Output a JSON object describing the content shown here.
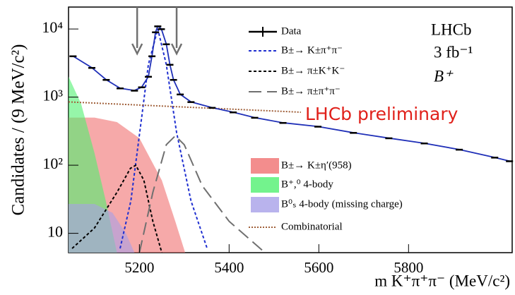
{
  "chart_data": {
    "type": "line",
    "log_y": true,
    "xlim": [
      5042,
      6031
    ],
    "ylim": [
      5.2,
      21000
    ],
    "xticks": [
      5200,
      5400,
      5600,
      5800
    ],
    "yticks": [
      {
        "value": 10,
        "label": "10"
      },
      {
        "value": 100,
        "label": "10²"
      },
      {
        "value": 1000,
        "label": "10³"
      },
      {
        "value": 10000,
        "label": "10⁴"
      }
    ],
    "y_label": "Candidates / (9 MeV/c²)",
    "x_label": "m K⁺π⁺π⁻ (MeV/c²)",
    "annotations": [
      "LHCb",
      "3 fb⁻¹",
      "B⁺"
    ],
    "watermark": "LHCb preliminary",
    "arrows_x": [
      5195,
      5283
    ],
    "data_series": {
      "name": "Data",
      "color": "#000000",
      "x": [
        5052,
        5094,
        5126,
        5157,
        5189,
        5205,
        5220,
        5228,
        5236,
        5241,
        5249,
        5260,
        5268,
        5276,
        5291,
        5315,
        5362,
        5409,
        5457,
        5520,
        5598,
        5677,
        5756,
        5835,
        5913,
        5992,
        6025
      ],
      "values": [
        4000,
        2700,
        1800,
        1350,
        1250,
        1400,
        2000,
        4000,
        9000,
        11000,
        10000,
        6000,
        3000,
        1800,
        1100,
        850,
        700,
        600,
        500,
        420,
        370,
        300,
        250,
        210,
        170,
        130,
        115
      ]
    },
    "fit": {
      "color": "#2030b8",
      "x": [
        5052,
        5094,
        5126,
        5157,
        5189,
        5205,
        5220,
        5228,
        5236,
        5241,
        5249,
        5260,
        5268,
        5276,
        5291,
        5315,
        5362,
        5409,
        5457,
        5520,
        5598,
        5677,
        5756,
        5835,
        5913,
        5992,
        6025
      ],
      "values": [
        4000,
        2700,
        1800,
        1350,
        1250,
        1400,
        2000,
        4000,
        9000,
        11000,
        10000,
        6000,
        3000,
        1800,
        1100,
        850,
        700,
        600,
        500,
        420,
        370,
        300,
        250,
        210,
        170,
        130,
        115
      ]
    },
    "series": [
      {
        "name": "B±→ K±π⁺π⁻",
        "color": "#2030d0",
        "style": "dashed",
        "x": [
          5157,
          5181,
          5205,
          5220,
          5241,
          5260,
          5283,
          5315,
          5351
        ],
        "values": [
          6,
          30,
          500,
          3000,
          10000,
          3000,
          300,
          30,
          6
        ]
      },
      {
        "name": "B±→ π±K⁺K⁻",
        "color": "#000000",
        "style": "dashed",
        "x": [
          5050,
          5100,
          5150,
          5180,
          5192,
          5210,
          5230,
          5250
        ],
        "values": [
          6,
          12,
          40,
          90,
          100,
          60,
          15,
          5.2
        ]
      },
      {
        "name": "B±→ π±π⁺π⁻",
        "color": "#707070",
        "style": "longdash",
        "x": [
          5200,
          5230,
          5260,
          5280,
          5300,
          5340,
          5400,
          5480
        ],
        "values": [
          5.2,
          40,
          200,
          270,
          200,
          50,
          15,
          5.2
        ]
      },
      {
        "name": "B±→ K±η′(958)",
        "color": "#f07070",
        "style": "fill",
        "x": [
          5042,
          5100,
          5150,
          5200,
          5250,
          5280,
          5302
        ],
        "values": [
          500,
          500,
          430,
          250,
          60,
          15,
          5.2
        ]
      },
      {
        "name": "B⁺,⁰ 4-body",
        "color": "#50f070",
        "style": "fill",
        "x": [
          5042,
          5070,
          5100,
          5125,
          5150
        ],
        "values": [
          2000,
          800,
          150,
          30,
          5.2
        ]
      },
      {
        "name": "B⁰ₛ 4-body (missing charge)",
        "color": "#a8a0e8",
        "style": "fill",
        "x": [
          5042,
          5100,
          5140,
          5170,
          5189
        ],
        "values": [
          27,
          27,
          20,
          10,
          5.2
        ]
      },
      {
        "name": "Combinatorial",
        "color": "#a0603a",
        "style": "dotted",
        "x": [
          5042,
          5560
        ],
        "values": [
          850,
          600
        ]
      }
    ]
  }
}
